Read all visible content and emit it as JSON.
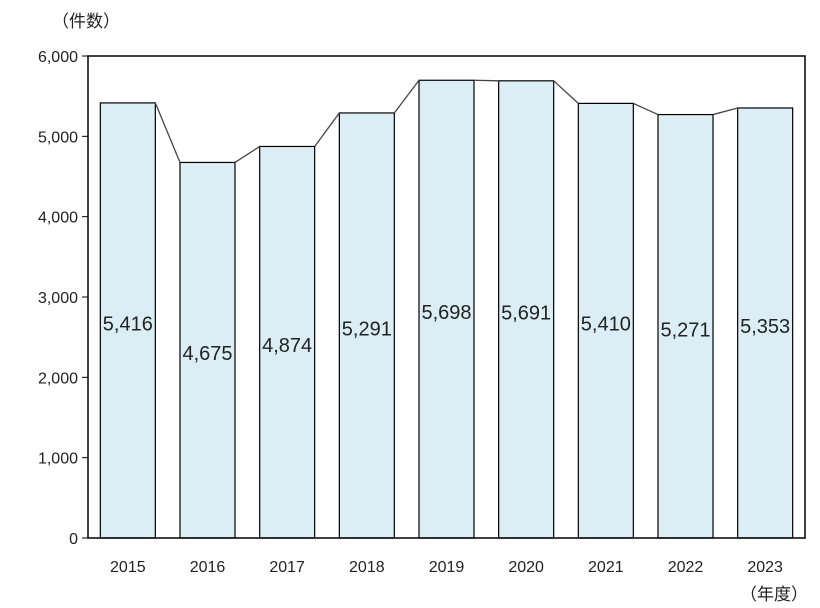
{
  "chart_data": {
    "type": "bar",
    "y_unit_label": "（件数）",
    "x_unit_label": "（年度）",
    "categories": [
      "2015",
      "2016",
      "2017",
      "2018",
      "2019",
      "2020",
      "2021",
      "2022",
      "2023"
    ],
    "values": [
      5416,
      4675,
      4874,
      5291,
      5698,
      5691,
      5410,
      5271,
      5353
    ],
    "data_labels": [
      "5,416",
      "4,675",
      "4,874",
      "5,291",
      "5,698",
      "5,691",
      "5,410",
      "5,271",
      "5,353"
    ],
    "y_ticks": [
      0,
      1000,
      2000,
      3000,
      4000,
      5000,
      6000
    ],
    "y_tick_labels": [
      "0",
      "1,000",
      "2,000",
      "3,000",
      "4,000",
      "5,000",
      "6,000"
    ],
    "ylim": [
      0,
      6000
    ],
    "grid": false,
    "legend": "none",
    "overlay_line": true,
    "colors": {
      "bar_fill": "#dbeef5",
      "bar_stroke": "#000000",
      "line": "#444444"
    }
  }
}
